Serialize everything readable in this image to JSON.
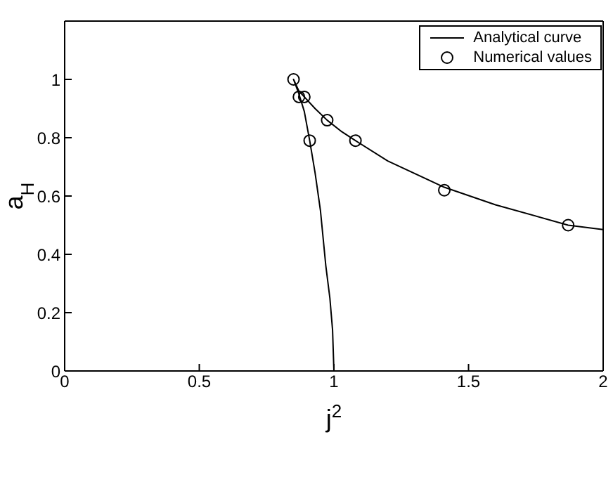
{
  "chart_data": {
    "type": "line",
    "xlabel": "j$^{2}$",
    "ylabel": "a$_{H}$",
    "xlim": [
      0,
      2
    ],
    "ylim": [
      0,
      1.2
    ],
    "xticks": [
      0,
      0.5,
      1,
      1.5,
      2
    ],
    "yticks": [
      0,
      0.2,
      0.4,
      0.6,
      0.8,
      1
    ],
    "legend": "top right",
    "series": [
      {
        "name": "Analytical curve",
        "color": "#000000",
        "marker": "none",
        "line_style": "solid",
        "x": [
          1.0,
          0.995,
          0.985,
          0.97,
          0.95,
          0.93,
          0.91,
          0.89,
          0.87,
          0.85,
          0.87,
          0.89,
          0.93,
          0.975,
          1.03,
          1.08,
          1.2,
          1.41,
          1.6,
          1.87,
          2.0
        ],
        "values": [
          0,
          0.14,
          0.25,
          0.36,
          0.55,
          0.68,
          0.79,
          0.89,
          0.95,
          1.0,
          0.96,
          0.94,
          0.9,
          0.86,
          0.82,
          0.79,
          0.72,
          0.63,
          0.57,
          0.5,
          0.485
        ]
      },
      {
        "name": "Numerical values",
        "type": "scatter",
        "color": "#000000",
        "marker": "circle",
        "x": [
          0.85,
          0.87,
          0.89,
          0.91,
          0.975,
          1.08,
          1.41,
          1.87
        ],
        "values": [
          1.0,
          0.94,
          0.94,
          0.79,
          0.86,
          0.79,
          0.62,
          0.5
        ]
      }
    ]
  }
}
